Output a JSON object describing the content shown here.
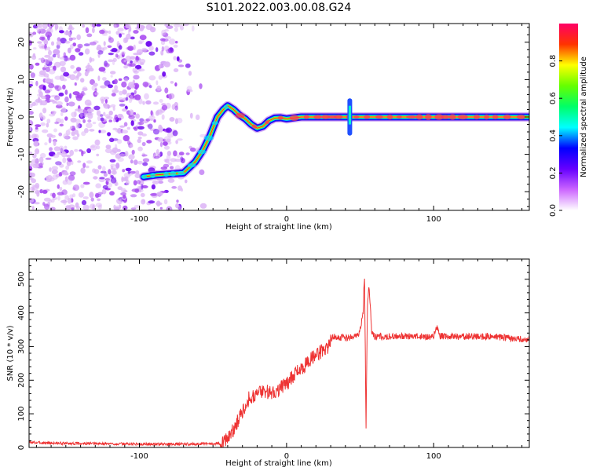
{
  "figure": {
    "title": "S101.2022.003.00.08.G24"
  },
  "chart_data": [
    {
      "type": "heatmap",
      "xlabel": "Height of straight line (km)",
      "ylabel": "Frequency (Hz)",
      "xlim": [
        -175,
        165
      ],
      "ylim": [
        -25,
        25
      ],
      "xticks": [
        -100,
        0,
        100
      ],
      "yticks": [
        -20,
        -10,
        0,
        10,
        20
      ],
      "grid": false,
      "noise_region": {
        "x": [
          -175,
          -55
        ],
        "y": [
          -25,
          25
        ]
      },
      "ridge": {
        "x": [
          -97,
          -88,
          -70,
          -62,
          -57,
          -52,
          -47,
          -43,
          -40,
          -36,
          -32,
          -28,
          -24,
          -20,
          -16,
          -12,
          -8,
          -4,
          0,
          10,
          20,
          30,
          40,
          43,
          50,
          60,
          80,
          100,
          120,
          140,
          160,
          165
        ],
        "y": [
          -16,
          -15.5,
          -15,
          -12,
          -9,
          -5,
          0,
          2,
          3,
          2,
          0.5,
          -0.5,
          -2,
          -3,
          -2.5,
          -1,
          -0.3,
          -0.2,
          -0.5,
          0,
          0,
          0,
          0,
          0,
          0,
          0,
          0,
          0,
          0,
          0,
          0,
          0
        ]
      },
      "colorbar": {
        "label": "Normalized spectral amplitude",
        "ticks": [
          "0.0",
          "0.2",
          "0.4",
          "0.6",
          "0.8"
        ],
        "range": [
          0,
          1
        ],
        "colors": [
          "#ffffff",
          "#cc66ff",
          "#6600ff",
          "#0000ff",
          "#00ffff",
          "#00ff66",
          "#66ff00",
          "#ffff00",
          "#ff3300",
          "#ff0066"
        ]
      }
    },
    {
      "type": "line",
      "xlabel": "Height of straight line (km)",
      "ylabel": "SNR (10 * v/v)",
      "xlim": [
        -175,
        165
      ],
      "ylim": [
        0,
        560
      ],
      "xticks": [
        -100,
        0,
        100
      ],
      "yticks": [
        0,
        100,
        200,
        300,
        400,
        500
      ],
      "grid": false,
      "series": [
        {
          "color": "#ee3333",
          "x": [
            -175,
            -150,
            -100,
            -60,
            -45,
            -40,
            -35,
            -30,
            -25,
            -20,
            -15,
            -10,
            -5,
            0,
            5,
            10,
            15,
            20,
            25,
            28,
            30,
            32,
            40,
            48,
            50,
            52,
            53,
            54,
            55,
            56,
            58,
            60,
            80,
            100,
            102,
            104,
            120,
            140,
            165
          ],
          "y": [
            15,
            12,
            10,
            10,
            12,
            25,
            60,
            110,
            150,
            160,
            170,
            160,
            175,
            190,
            215,
            235,
            255,
            275,
            290,
            300,
            320,
            330,
            325,
            330,
            350,
            400,
            520,
            60,
            430,
            480,
            340,
            330,
            330,
            330,
            360,
            330,
            330,
            330,
            320
          ]
        }
      ]
    }
  ]
}
